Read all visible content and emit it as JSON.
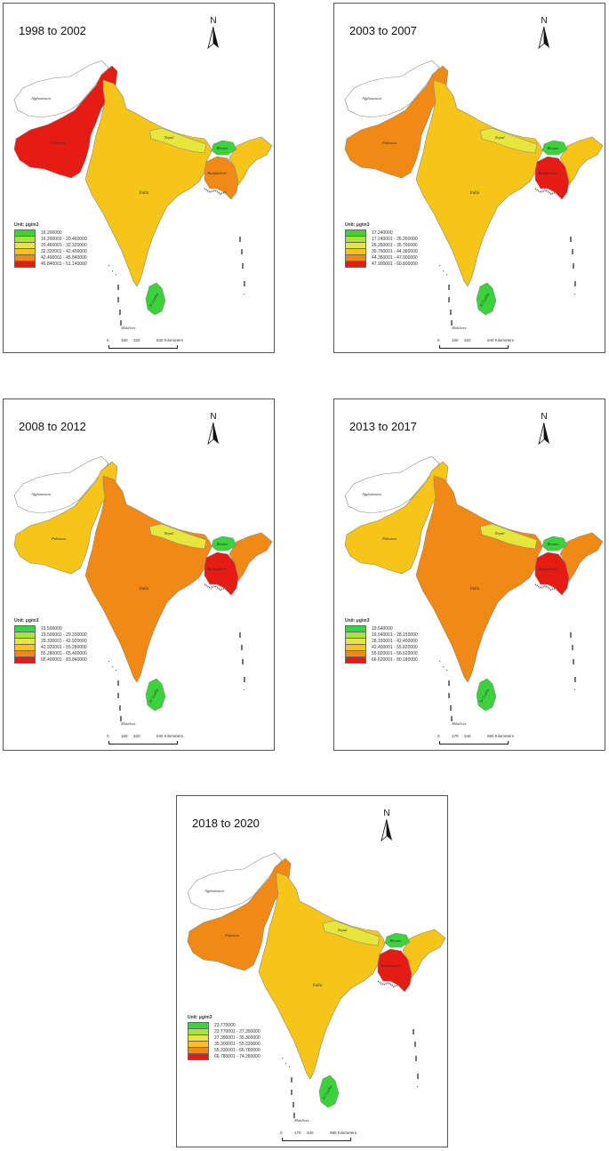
{
  "legend_unit": "Unit: μg/m3",
  "colors": {
    "class1": "#3cd23c",
    "class2": "#a8e53a",
    "class3": "#e6e63c",
    "class4": "#f5c518",
    "class5": "#f08a14",
    "class6": "#e61c14",
    "afghanistan": "#ffffff",
    "border": "#888888"
  },
  "country_labels": {
    "afghanistan": "Afghanistan",
    "pakistan": "Pakistan",
    "india": "India",
    "nepal": "Nepal",
    "bhutan": "Bhutan",
    "bangladesh": "Bangladesh",
    "sri_lanka": "Sri Lanka",
    "maldives": "Maldives"
  },
  "north_label": "N",
  "panels": [
    {
      "title": "1998 to 2002",
      "legend": [
        "16.200000",
        "16.200001 - 20.460000",
        "20.460001 - 32.320000",
        "32.320001 - 42.400000",
        "42.400001 - 45.840000",
        "45.840001 - 51.140000"
      ],
      "scale": [
        "0",
        "160",
        "320",
        "640 Kilometers"
      ],
      "country_class": {
        "pakistan": 6,
        "india": 4,
        "nepal": 3,
        "bhutan": 1,
        "bangladesh": 5,
        "sri_lanka": 1
      }
    },
    {
      "title": "2003 to 2007",
      "legend": [
        "17.240000",
        "17.240001 - 26.260000",
        "26.260001 - 35.760000",
        "35.760001 - 44.360000",
        "44.360001 - 47.900000",
        "47.900001 - 60.800000"
      ],
      "scale": [
        "0",
        "160",
        "320",
        "640 Kilometers"
      ],
      "country_class": {
        "pakistan": 5,
        "india": 4,
        "nepal": 3,
        "bhutan": 1,
        "bangladesh": 6,
        "sri_lanka": 1
      }
    },
    {
      "title": "2008 to 2012",
      "legend": [
        "19.500000",
        "19.500001 - 29.330000",
        "29.330001 - 42.920000",
        "42.920001 - 55.280000",
        "55.280001 - 65.400000",
        "65.400001 - 83.840000"
      ],
      "scale": [
        "0",
        "160",
        "320",
        "640 Kilometers"
      ],
      "country_class": {
        "pakistan": 4,
        "india": 5,
        "nepal": 3,
        "bhutan": 1,
        "bangladesh": 6,
        "sri_lanka": 1
      }
    },
    {
      "title": "2013 to 2017",
      "legend": [
        "19.540000",
        "19.540001 - 28.150000",
        "28.150001 - 42.400000",
        "42.400001 - 55.820000",
        "55.820001 - 66.620000",
        "66.620001 - 80.180000"
      ],
      "scale": [
        "0",
        "170",
        "340",
        "680 Kilometers"
      ],
      "country_class": {
        "pakistan": 4,
        "india": 5,
        "nepal": 3,
        "bhutan": 1,
        "bangladesh": 6,
        "sri_lanka": 1
      }
    },
    {
      "title": "2018 to 2020",
      "legend": [
        "23.770000",
        "23.770001 - 27.390000",
        "27.390001 - 35.300000",
        "35.300001 - 55.330000",
        "55.330001 - 66.780000",
        "66.780001 - 74.280000"
      ],
      "scale": [
        "0",
        "170",
        "340",
        "680 Kilometers"
      ],
      "country_class": {
        "pakistan": 5,
        "india": 4,
        "nepal": 3,
        "bhutan": 1,
        "bangladesh": 6,
        "sri_lanka": 1
      }
    }
  ]
}
